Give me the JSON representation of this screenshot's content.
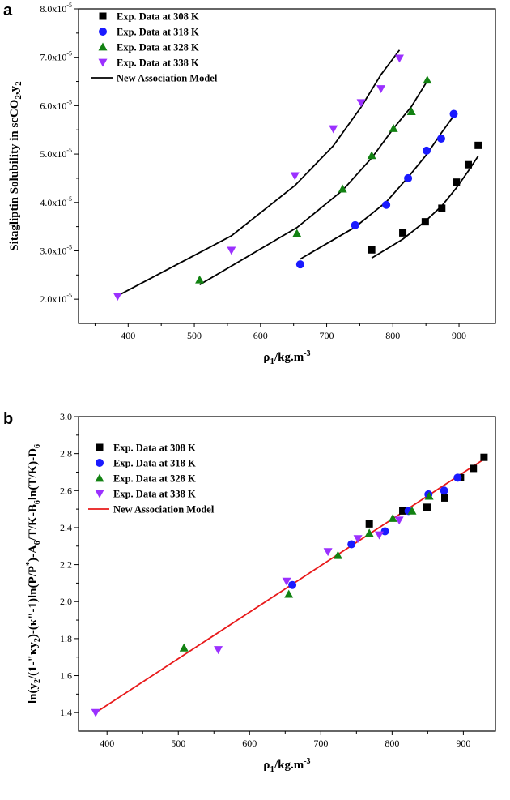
{
  "chart_data": [
    {
      "panel_label": "a",
      "type": "scatter",
      "xlabel": "ρ1/kg.m-3",
      "ylabel": "Sitagliptin Solubility in scCO2,y2",
      "xlim": [
        325,
        955
      ],
      "ylim": [
        1.5,
        8.0
      ],
      "x_ticks": [
        400,
        500,
        600,
        700,
        800,
        900
      ],
      "y_ticks": [
        2.0,
        3.0,
        4.0,
        5.0,
        6.0,
        7.0,
        8.0
      ],
      "y_tick_labels": [
        {
          "base": "2.0x10",
          "exp": "-5"
        },
        {
          "base": "3.0x10",
          "exp": "-5"
        },
        {
          "base": "4.0x10",
          "exp": "-5"
        },
        {
          "base": "5.0x10",
          "exp": "-5"
        },
        {
          "base": "6.0x10",
          "exp": "-5"
        },
        {
          "base": "7.0x10",
          "exp": "-5"
        },
        {
          "base": "8.0x10",
          "exp": "-5"
        }
      ],
      "y_units": "x10^-5",
      "series": [
        {
          "name": "Exp. Data at 308 K",
          "marker": "square",
          "color": "#000000",
          "x": [
            768,
            815,
            849,
            874,
            896,
            914,
            929
          ],
          "y": [
            3.02,
            3.37,
            3.6,
            3.88,
            4.42,
            4.78,
            5.18
          ]
        },
        {
          "name": "Exp. Data at 318 K",
          "marker": "circle",
          "color": "#1a1aff",
          "x": [
            660,
            743,
            790,
            823,
            851,
            873,
            892
          ],
          "y": [
            2.72,
            3.53,
            3.95,
            4.5,
            5.07,
            5.32,
            5.83
          ]
        },
        {
          "name": "Exp. Data at 328 K",
          "marker": "triangle-up",
          "color": "#128212",
          "x": [
            508,
            655,
            724,
            768,
            801,
            828,
            852
          ],
          "y": [
            2.4,
            3.36,
            4.28,
            4.97,
            5.53,
            5.88,
            6.53
          ]
        },
        {
          "name": "Exp. Data at 338 K",
          "marker": "triangle-down",
          "color": "#9b30ff",
          "x": [
            384,
            556,
            652,
            710,
            752,
            782,
            810
          ],
          "y": [
            2.06,
            3.01,
            4.55,
            5.52,
            6.06,
            6.35,
            6.98
          ]
        }
      ],
      "model": {
        "name": "New Association Model",
        "color": "#000000",
        "lines": [
          {
            "x": [
              768,
              815,
              849,
              874,
              896,
              914,
              929
            ],
            "y": [
              2.85,
              3.24,
              3.61,
              3.93,
              4.3,
              4.65,
              4.96
            ]
          },
          {
            "x": [
              660,
              743,
              790,
              823,
              851,
              873,
              892
            ],
            "y": [
              2.83,
              3.49,
              4.01,
              4.52,
              4.99,
              5.43,
              5.79
            ]
          },
          {
            "x": [
              508,
              655,
              724,
              768,
              801,
              828,
              852
            ],
            "y": [
              2.3,
              3.48,
              4.25,
              4.92,
              5.53,
              5.98,
              6.51
            ]
          },
          {
            "x": [
              384,
              556,
              652,
              710,
              752,
              782,
              810
            ],
            "y": [
              2.07,
              3.31,
              4.35,
              5.17,
              5.97,
              6.64,
              7.15
            ]
          }
        ]
      }
    },
    {
      "panel_label": "b",
      "type": "scatter",
      "xlabel": "ρ1/kg.m-3",
      "ylabel": "ln(y2/(1-\"κy2)-(κ\"-1)ln(P/P*)-A6/T/K-B6ln(T/K)-D6",
      "xlim": [
        360,
        945
      ],
      "ylim": [
        1.3,
        3.0
      ],
      "x_ticks": [
        400,
        500,
        600,
        700,
        800,
        900
      ],
      "y_ticks": [
        1.4,
        1.6,
        1.8,
        2.0,
        2.2,
        2.4,
        2.6,
        2.8,
        3.0
      ],
      "y_tick_labels": [
        "1.4",
        "1.6",
        "1.8",
        "2.0",
        "2.2",
        "2.4",
        "2.6",
        "2.8",
        "3.0"
      ],
      "series": [
        {
          "name": "Exp. Data at 308 K",
          "marker": "square",
          "color": "#000000",
          "x": [
            768,
            815,
            849,
            874,
            896,
            914,
            929
          ],
          "y": [
            2.42,
            2.49,
            2.51,
            2.56,
            2.67,
            2.72,
            2.78
          ]
        },
        {
          "name": "Exp. Data at 318 K",
          "marker": "circle",
          "color": "#1a1aff",
          "x": [
            660,
            743,
            790,
            823,
            851,
            873,
            892
          ],
          "y": [
            2.09,
            2.31,
            2.38,
            2.49,
            2.58,
            2.6,
            2.67
          ]
        },
        {
          "name": "Exp. Data at 328 K",
          "marker": "triangle-up",
          "color": "#128212",
          "x": [
            508,
            655,
            724,
            768,
            801,
            828,
            852
          ],
          "y": [
            1.75,
            2.04,
            2.25,
            2.37,
            2.45,
            2.49,
            2.57
          ]
        },
        {
          "name": "Exp. Data at 338 K",
          "marker": "triangle-down",
          "color": "#9b30ff",
          "x": [
            384,
            556,
            652,
            710,
            752,
            782,
            810
          ],
          "y": [
            1.4,
            1.74,
            2.11,
            2.27,
            2.34,
            2.36,
            2.44
          ]
        }
      ],
      "model": {
        "name": "New Association Model",
        "color": "#e8191a",
        "lines": [
          {
            "x": [
              384,
              929
            ],
            "y": [
              1.4,
              2.77
            ]
          }
        ]
      }
    }
  ]
}
